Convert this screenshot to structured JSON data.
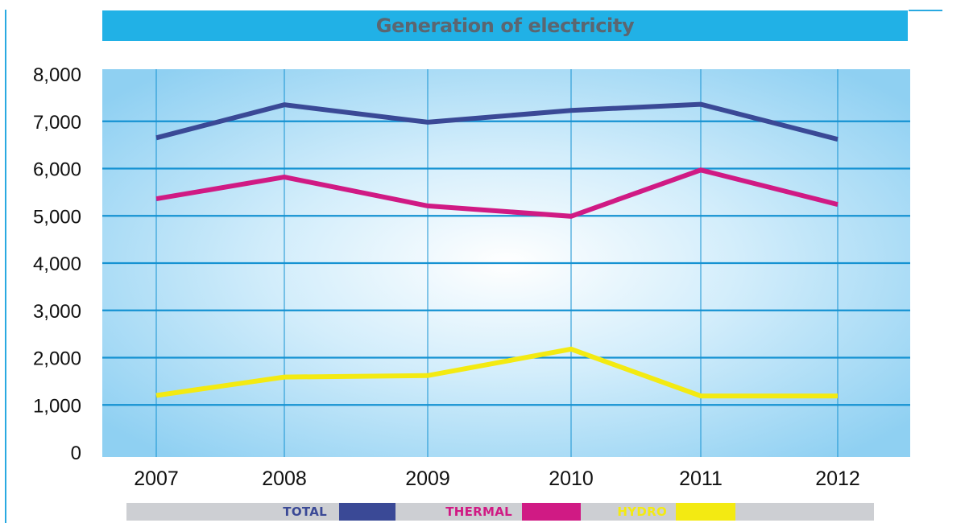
{
  "title": "Generation of electricity",
  "colors": {
    "title_bar": "#21b1e6",
    "title_text": "#5c6670",
    "grid": "#1592d2",
    "total": "#3a4996",
    "thermal": "#d01a84",
    "hydro": "#f3ea12",
    "legend_bg": "#cdcfd3"
  },
  "chart_data": {
    "type": "line",
    "title": "Generation of electricity",
    "xlabel": "",
    "ylabel": "",
    "x": [
      "2007",
      "2008",
      "2009",
      "2010",
      "2011",
      "2012"
    ],
    "ylim": [
      0,
      8000
    ],
    "y_ticks": [
      "0",
      "1,000",
      "2,000",
      "3,000",
      "4,000",
      "5,000",
      "6,000",
      "7,000",
      "8,000"
    ],
    "grid": true,
    "legend_position": "bottom",
    "series": [
      {
        "name": "TOTAL",
        "color": "#3a4996",
        "values": [
          6650,
          7350,
          6980,
          7230,
          7360,
          6620
        ]
      },
      {
        "name": "THERMAL",
        "color": "#d01a84",
        "values": [
          5360,
          5820,
          5210,
          4990,
          5970,
          5240
        ]
      },
      {
        "name": "HYDRO",
        "color": "#f3ea12",
        "values": [
          1200,
          1590,
          1620,
          2180,
          1190,
          1190
        ]
      }
    ]
  }
}
